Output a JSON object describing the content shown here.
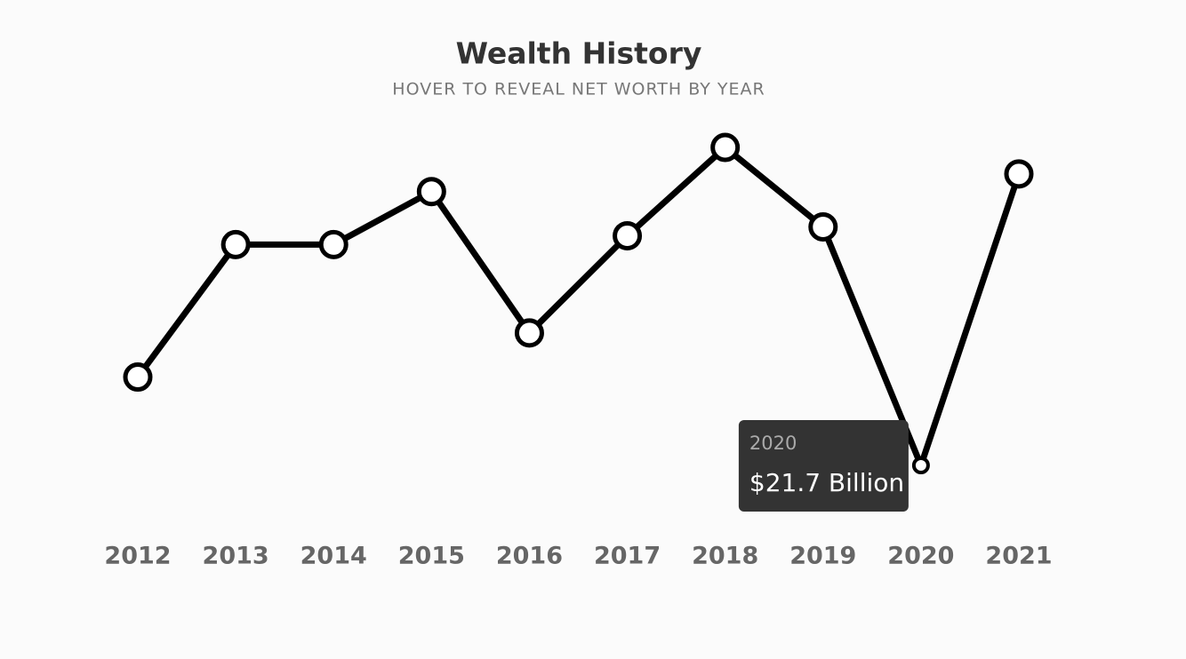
{
  "chart_data": {
    "type": "line",
    "title": "Wealth History",
    "subtitle": "HOVER TO REVEAL NET WORTH BY YEAR",
    "categories": [
      "2012",
      "2013",
      "2014",
      "2015",
      "2016",
      "2017",
      "2018",
      "2019",
      "2020",
      "2021"
    ],
    "values": [
      22.7,
      24.2,
      24.2,
      24.8,
      23.2,
      24.3,
      25.3,
      24.4,
      21.7,
      25.0
    ],
    "value_labels": [
      null,
      null,
      null,
      null,
      null,
      null,
      null,
      null,
      "$21.7 Billion",
      null
    ],
    "color": "#000000"
  }
}
